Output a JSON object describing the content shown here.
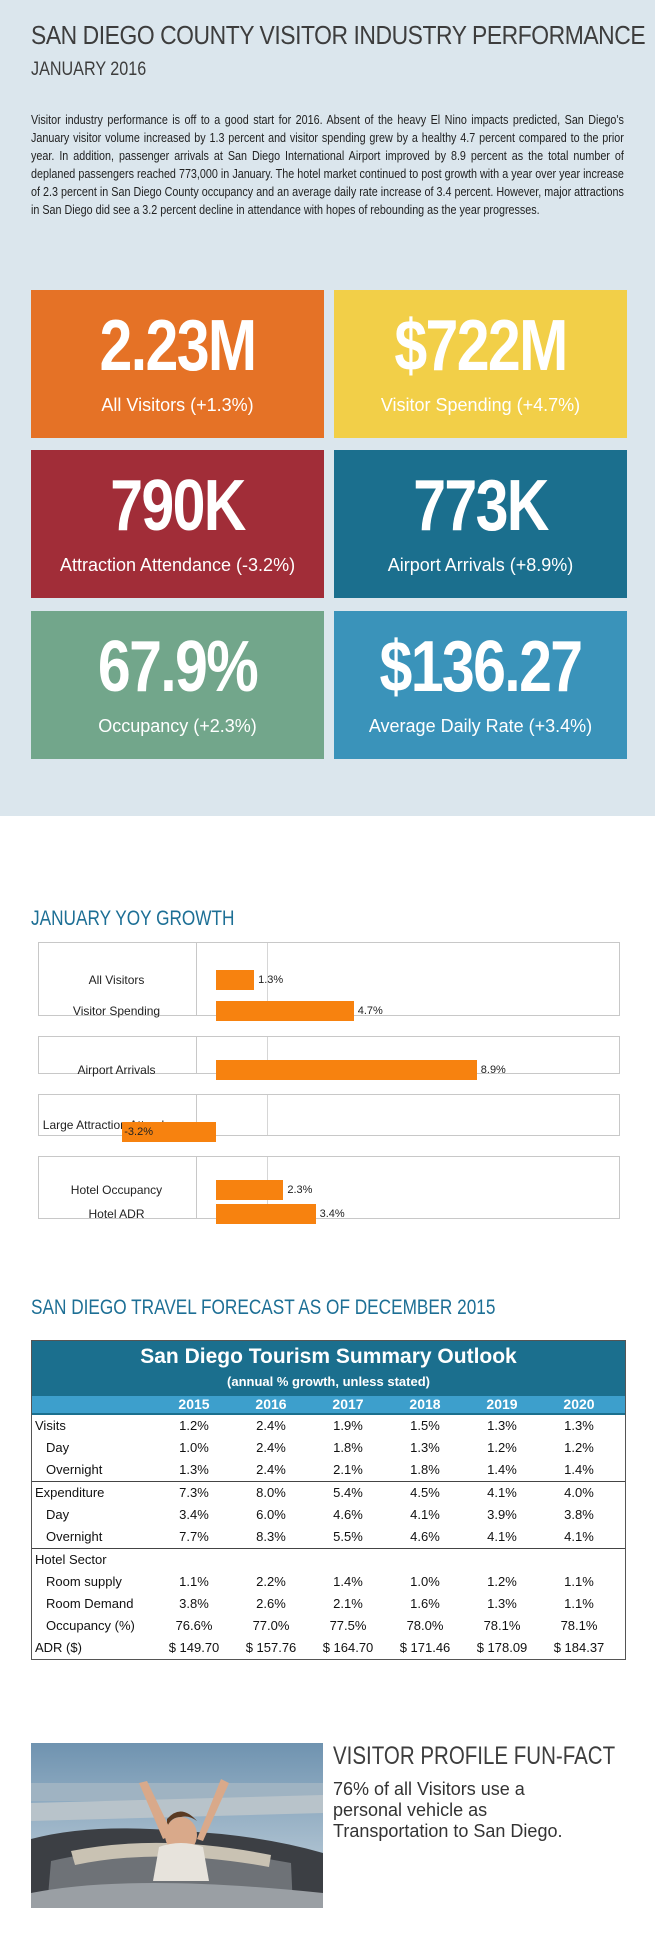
{
  "header": {
    "title": "SAN DIEGO COUNTY VISITOR INDUSTRY PERFORMANCE",
    "subtitle": "JANUARY 2016",
    "paragraph": "Visitor industry performance is off to a good start for 2016. Absent of the heavy El Nino impacts predicted, San Diego's January visitor volume increased by 1.3 percent and visitor spending grew by a healthy 4.7 percent compared to the prior year. In addition, passenger arrivals at San Diego International Airport improved by 8.9 percent as the total number of deplaned passengers reached 773,000 in January. The hotel market continued to post growth with a year over year increase of 2.3 percent in San Diego County occupancy and an average daily rate increase of 3.4 percent. However, major attractions in San Diego did see a 3.2 percent decline in attendance with hopes of rebounding as the year progresses."
  },
  "stats": [
    {
      "value": "2.23M",
      "label": "All Visitors (+1.3%)",
      "color": "#e57226"
    },
    {
      "value": "$722M",
      "label": "Visitor Spending (+4.7%)",
      "color": "#f2cf48"
    },
    {
      "value": "790K",
      "label": "Attraction Attendance (-3.2%)",
      "color": "#a12d38"
    },
    {
      "value": "773K",
      "label": "Airport Arrivals (+8.9%)",
      "color": "#1b6f8e"
    },
    {
      "value": "67.9%",
      "label": "Occupancy (+2.3%)",
      "color": "#72a68b"
    },
    {
      "value": "$136.27",
      "label": "Average Daily Rate (+3.4%)",
      "color": "#3a93ba"
    }
  ],
  "yoy": {
    "heading": "JANUARY YOY GROWTH"
  },
  "chart_data": {
    "type": "bar",
    "orientation": "horizontal",
    "categories": [
      "All Visitors",
      "Visitor Spending",
      "Airport Arrivals",
      "Large Attraction Attendance",
      "Hotel Occupancy",
      "Hotel ADR"
    ],
    "values": [
      1.3,
      4.7,
      8.9,
      -3.2,
      2.3,
      3.4
    ],
    "value_labels": [
      "1.3%",
      "4.7%",
      "8.9%",
      "-3.2%",
      "2.3%",
      "3.4%"
    ],
    "bar_color": "#f7820f",
    "xlim": [
      -5,
      10
    ],
    "grid": false
  },
  "forecast": {
    "heading": "SAN DIEGO TRAVEL FORECAST AS OF DECEMBER 2015",
    "table_title": "San Diego Tourism Summary Outlook",
    "table_subtitle": "(annual % growth, unless stated)",
    "years": [
      "2015",
      "2016",
      "2017",
      "2018",
      "2019",
      "2020"
    ],
    "rows": [
      {
        "label": "Visits",
        "indent": false,
        "values": [
          "1.2%",
          "2.4%",
          "1.9%",
          "1.5%",
          "1.3%",
          "1.3%"
        ]
      },
      {
        "label": "Day",
        "indent": true,
        "values": [
          "1.0%",
          "2.4%",
          "1.8%",
          "1.3%",
          "1.2%",
          "1.2%"
        ]
      },
      {
        "label": "Overnight",
        "indent": true,
        "values": [
          "1.3%",
          "2.4%",
          "2.1%",
          "1.8%",
          "1.4%",
          "1.4%"
        ]
      },
      {
        "label": "Expenditure",
        "indent": false,
        "sep": true,
        "values": [
          "7.3%",
          "8.0%",
          "5.4%",
          "4.5%",
          "4.1%",
          "4.0%"
        ]
      },
      {
        "label": "Day",
        "indent": true,
        "values": [
          "3.4%",
          "6.0%",
          "4.6%",
          "4.1%",
          "3.9%",
          "3.8%"
        ]
      },
      {
        "label": "Overnight",
        "indent": true,
        "values": [
          "7.7%",
          "8.3%",
          "5.5%",
          "4.6%",
          "4.1%",
          "4.1%"
        ]
      },
      {
        "label": "Hotel Sector",
        "indent": false,
        "sep": true,
        "values": [
          "",
          "",
          "",
          "",
          "",
          ""
        ]
      },
      {
        "label": "Room supply",
        "indent": true,
        "values": [
          "1.1%",
          "2.2%",
          "1.4%",
          "1.0%",
          "1.2%",
          "1.1%"
        ]
      },
      {
        "label": "Room Demand",
        "indent": true,
        "values": [
          "3.8%",
          "2.6%",
          "2.1%",
          "1.6%",
          "1.3%",
          "1.1%"
        ]
      },
      {
        "label": "Occupancy (%)",
        "indent": true,
        "values": [
          "76.6%",
          "77.0%",
          "77.5%",
          "78.0%",
          "78.1%",
          "78.1%"
        ]
      },
      {
        "label": "ADR ($)",
        "indent": false,
        "values": [
          "$ 149.70",
          "$ 157.76",
          "$ 164.70",
          "$ 171.46",
          "$ 178.09",
          "$ 184.37"
        ]
      }
    ]
  },
  "funfact": {
    "title": "VISITOR PROFILE FUN-FACT",
    "text": "76% of all Visitors use a personal vehicle as Transportation to San Diego."
  }
}
